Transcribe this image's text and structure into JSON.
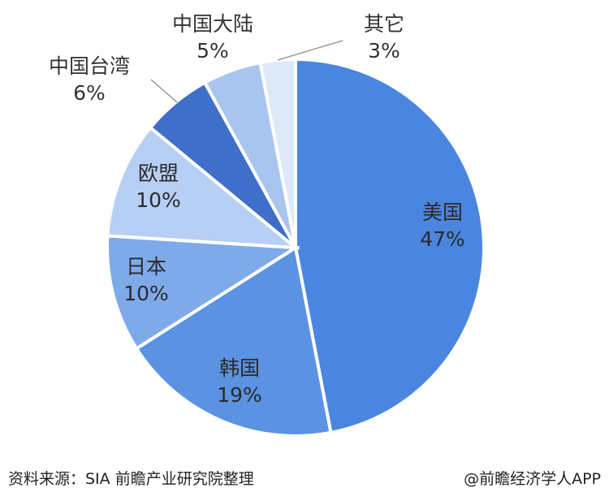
{
  "chart_data": {
    "type": "pie",
    "slices": [
      {
        "label": "美国",
        "value": 47,
        "pct_label": "47%",
        "color": "#4a86e0"
      },
      {
        "label": "韩国",
        "value": 19,
        "pct_label": "19%",
        "color": "#5b92e2"
      },
      {
        "label": "日本",
        "value": 10,
        "pct_label": "10%",
        "color": "#7faaea"
      },
      {
        "label": "欧盟",
        "value": 10,
        "pct_label": "10%",
        "color": "#b7cff4"
      },
      {
        "label": "中国台湾",
        "value": 6,
        "pct_label": "6%",
        "color": "#3f6fc9"
      },
      {
        "label": "中国大陆",
        "value": 5,
        "pct_label": "5%",
        "color": "#a9c5ee"
      },
      {
        "label": "其它",
        "value": 3,
        "pct_label": "3%",
        "color": "#dde8f8"
      }
    ],
    "start_angle_deg": 0,
    "direction": "clockwise"
  },
  "footer": {
    "source": "资料来源：SIA 前瞻产业研究院整理",
    "credit": "@前瞻经济学人APP"
  }
}
